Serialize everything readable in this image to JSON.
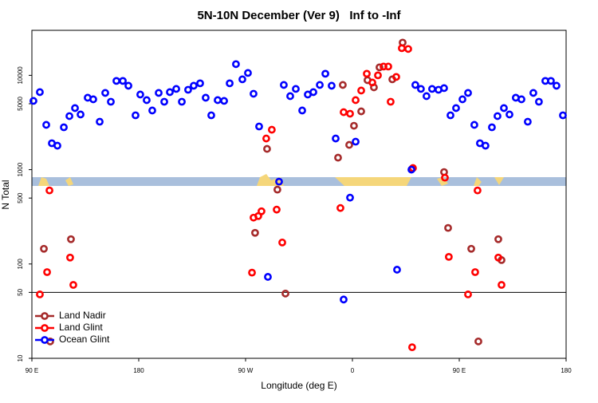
{
  "chart_data": {
    "type": "scatter",
    "title": "5N-10N December (Ver 9)   Inf to -Inf",
    "x_label": "Longitude (deg E)",
    "y_label": "N Total",
    "xlim": [
      90,
      540
    ],
    "xticks": [
      {
        "value": 90,
        "label": "90 E"
      },
      180,
      {
        "value": 270,
        "label": "90 W"
      },
      {
        "value": 360,
        "label": "0"
      },
      {
        "value": 450,
        "label": "90 E"
      },
      {
        "value": 540,
        "label": "180"
      }
    ],
    "ylim": [
      10,
      30000
    ],
    "yticks": [
      10,
      50,
      100,
      500,
      1000,
      5000,
      10000
    ],
    "log_y": true,
    "hline": 50,
    "legend": "lower left",
    "series": [
      {
        "name": "Land Nadir",
        "color": "#a52a2a",
        "x": [
          100.1,
          105.4,
          122.9,
          278.0,
          288.1,
          296.8,
          303.6,
          347.9,
          351.9,
          357.3,
          361.3,
          367.4,
          372.7,
          378.1,
          382.8,
          393.6,
          402.3,
          410.3,
          437.2,
          440.6,
          460.1,
          466.1,
          482.9,
          485.6
        ],
        "values": [
          145,
          15.1,
          183,
          214,
          1660,
          614,
          48.6,
          1340,
          7910,
          1830,
          2920,
          4150,
          8890,
          7460,
          12160,
          9070,
          22250,
          1020,
          943,
          241,
          145,
          15.1,
          183,
          110
        ]
      },
      {
        "name": "Land Glint",
        "color": "#ff0000",
        "x": [
          96.7,
          102.8,
          104.8,
          122.2,
          124.9,
          275.4,
          276.7,
          280.7,
          283.4,
          287.4,
          292.1,
          296.2,
          300.9,
          349.9,
          352.6,
          358.0,
          362.7,
          367.4,
          372.1,
          376.8,
          381.5,
          386.2,
          390.2,
          392.2,
          396.9,
          401.6,
          407.0,
          410.3,
          411.0,
          437.9,
          441.2,
          457.4,
          463.4,
          465.4,
          482.9,
          485.6
        ],
        "values": [
          47.6,
          82,
          602,
          117,
          60,
          81,
          310,
          322,
          362,
          2140,
          2650,
          377,
          169,
          392,
          4070,
          3920,
          5460,
          6900,
          10400,
          8390,
          10000,
          12400,
          12400,
          5250,
          9620,
          19400,
          19040,
          13.1,
          1040,
          822,
          119,
          47.6,
          82,
          602,
          117,
          60
        ]
      },
      {
        "name": "Ocean Glint",
        "color": "#0000ff",
        "x": [
          91.3,
          96.7,
          102.1,
          106.8,
          111.5,
          116.9,
          121.6,
          126.3,
          131.0,
          137.0,
          141.7,
          147.1,
          151.8,
          156.5,
          161.2,
          166.6,
          171.3,
          177.3,
          181.3,
          186.7,
          191.4,
          196.8,
          201.5,
          206.2,
          211.6,
          216.3,
          221.6,
          226.3,
          231.7,
          236.4,
          241.1,
          246.5,
          251.9,
          256.6,
          261.9,
          267.3,
          272.0,
          276.7,
          281.4,
          288.8,
          298.2,
          302.2,
          307.6,
          312.3,
          317.7,
          322.4,
          327.1,
          332.5,
          337.2,
          342.5,
          345.9,
          352.6,
          358.0,
          362.7,
          397.6,
          409.7,
          413.0,
          417.7,
          422.4,
          427.1,
          432.5,
          437.2,
          442.6,
          447.3,
          452.7,
          457.4,
          462.7,
          467.4,
          472.1,
          477.5,
          482.2,
          487.6,
          492.3,
          497.6,
          502.4,
          507.7,
          512.4,
          517.1,
          522.5,
          527.2,
          531.9,
          537.3
        ],
        "values": [
          5360,
          6640,
          2985,
          1905,
          1796,
          2812,
          3698,
          4497,
          3846,
          5790,
          5570,
          3222,
          6510,
          5250,
          8730,
          8730,
          7760,
          3770,
          6260,
          5460,
          4240,
          6510,
          5250,
          6640,
          7180,
          5250,
          7030,
          7760,
          8230,
          5790,
          3770,
          5460,
          5360,
          8230,
          13150,
          9070,
          10600,
          6380,
          2870,
          73,
          746,
          7910,
          6020,
          7180,
          4240,
          6260,
          6640,
          7910,
          10400,
          7760,
          2140,
          42,
          505,
          1980,
          87,
          1000,
          7910,
          7180,
          6020,
          7180,
          7030,
          7320,
          3770,
          4497,
          5570,
          6510,
          2985,
          1905,
          1796,
          2812,
          3698,
          4497,
          3846,
          5790,
          5570,
          3222,
          6510,
          5250,
          8730,
          8730,
          7760,
          3770
        ]
      }
    ]
  }
}
